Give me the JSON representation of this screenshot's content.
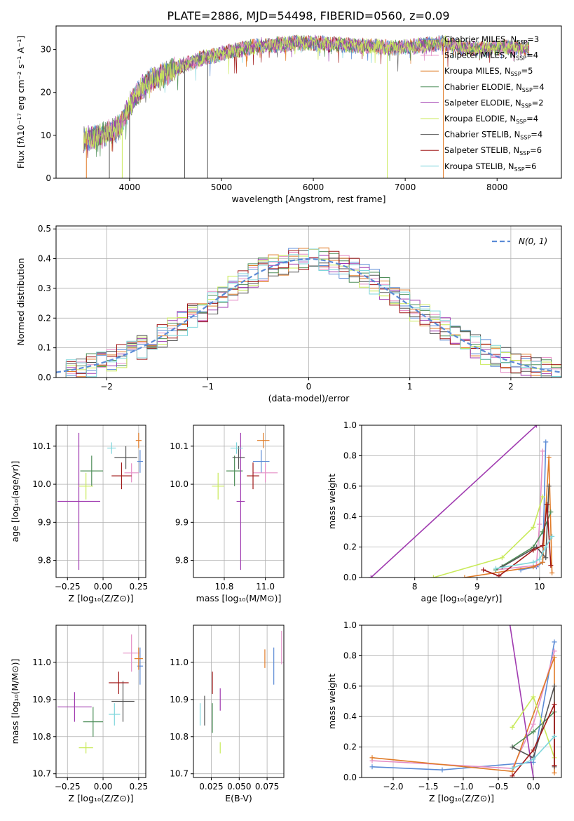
{
  "figure": {
    "title": "PLATE=2886, MJD=54498, FIBERID=0560, z=0.09"
  },
  "colors": {
    "chabrier_miles": "#5b8bd6",
    "salpeter_miles": "#e58fc6",
    "kroupa_miles": "#e07b27",
    "chabrier_elodie": "#4f8f5a",
    "salpeter_elodie": "#a03bb0",
    "kroupa_elodie": "#c9ea5a",
    "chabrier_stelib": "#555555",
    "salpeter_stelib": "#a01818",
    "kroupa_stelib": "#7fd6dc",
    "normal_curve": "#5b8bd6",
    "grid": "#b0b0b0"
  },
  "chart_data": [
    {
      "id": "spectrum",
      "type": "line",
      "xlabel": "wavelength [Angstrom, rest frame]",
      "ylabel": "Flux [fλ10⁻¹⁷ erg cm⁻² s⁻¹ A⁻¹]",
      "xlim": [
        3200,
        8700
      ],
      "ylim": [
        0,
        35.5
      ],
      "xticks": [
        "4000",
        "5000",
        "6000",
        "7000",
        "8000"
      ],
      "yticks": [
        "0",
        "10",
        "20",
        "30"
      ],
      "grid": false,
      "legend_position": "top-right",
      "legend": [
        "Chabrier MILES, N_SSP=3",
        "Salpeter MILES, N_SSP=4",
        "Kroupa MILES, N_SSP=5",
        "Chabrier ELODIE, N_SSP=4",
        "Salpeter ELODIE, N_SSP=2",
        "Kroupa ELODIE, N_SSP=4",
        "Chabrier STELIB, N_SSP=4",
        "Salpeter STELIB, N_SSP=6",
        "Kroupa STELIB, N_SSP=6"
      ],
      "continuum": {
        "x": [
          3500,
          3700,
          3900,
          4000,
          4100,
          4200,
          4400,
          4600,
          4800,
          5000,
          5200,
          5400,
          5600,
          5800,
          6000,
          6200,
          6400,
          6600,
          6800,
          7000,
          7200,
          7400,
          7600,
          7800,
          8000,
          8200,
          8350
        ],
        "y": [
          9,
          10,
          12,
          17,
          20,
          22.5,
          24.5,
          26.5,
          28,
          29,
          30,
          30.8,
          31.2,
          31.5,
          31.5,
          31.2,
          31,
          30.8,
          30.5,
          30.5,
          31,
          31.5,
          30.5,
          30,
          30.5,
          30.5,
          30.2
        ]
      },
      "spikes": [
        {
          "x": 3530,
          "y_min": 0,
          "color": "#e07b27"
        },
        {
          "x": 3780,
          "y_min": 0,
          "color": "#555555"
        },
        {
          "x": 3920,
          "y_min": 0,
          "color": "#c9ea5a"
        },
        {
          "x": 4000,
          "y_min": 0,
          "color": "#555555"
        },
        {
          "x": 4600,
          "y_min": 0,
          "color": "#555555"
        },
        {
          "x": 4850,
          "y_min": 0,
          "color": "#555555"
        },
        {
          "x": 6805,
          "y_min": 0,
          "color": "#c9ea5a"
        },
        {
          "x": 7415,
          "y_min": 0,
          "color": "#e07b27"
        }
      ]
    },
    {
      "id": "residuals",
      "type": "line",
      "xlabel": "(data-model)/error",
      "ylabel": "Normed distribution",
      "xlim": [
        -2.5,
        2.5
      ],
      "ylim": [
        0,
        0.51
      ],
      "xticks": [
        "−2",
        "−1",
        "0",
        "1",
        "2"
      ],
      "yticks": [
        "0.0",
        "0.1",
        "0.2",
        "0.3",
        "0.4",
        "0.5"
      ],
      "grid": true,
      "legend_position": "top-right",
      "legend": [
        "N(0, 1)"
      ],
      "bin_width": 0.1,
      "histogram_series": 9
    },
    {
      "id": "age_vs_Z",
      "type": "scatter",
      "xlabel": "Z [log₁₀(Z/Z⊙)]",
      "ylabel": "age  [log₁₀(age/yr)]",
      "xlim": [
        -0.33,
        0.3
      ],
      "ylim": [
        9.755,
        10.155
      ],
      "xticks": [
        "−0.25",
        "0.00",
        "0.25"
      ],
      "yticks": [
        "9.8",
        "9.9",
        "10.0",
        "10.1"
      ],
      "grid": true,
      "points": [
        {
          "series": "Chabrier MILES",
          "x": 0.26,
          "y": 10.06,
          "xerr": 0.02,
          "yerr": 0.03
        },
        {
          "series": "Salpeter MILES",
          "x": 0.2,
          "y": 10.03,
          "xerr": 0.05,
          "yerr": 0.025
        },
        {
          "series": "Kroupa MILES",
          "x": 0.25,
          "y": 10.115,
          "xerr": 0.02,
          "yerr": 0.02
        },
        {
          "series": "Chabrier ELODIE",
          "x": -0.08,
          "y": 10.035,
          "xerr": 0.08,
          "yerr": 0.04
        },
        {
          "series": "Salpeter ELODIE",
          "x": -0.17,
          "y": 9.955,
          "xerr": 0.15,
          "yerr": 0.18
        },
        {
          "series": "Kroupa ELODIE",
          "x": -0.12,
          "y": 9.995,
          "xerr": 0.05,
          "yerr": 0.035
        },
        {
          "series": "Chabrier STELIB",
          "x": 0.16,
          "y": 10.07,
          "xerr": 0.08,
          "yerr": 0.03
        },
        {
          "series": "Salpeter STELIB",
          "x": 0.13,
          "y": 10.022,
          "xerr": 0.07,
          "yerr": 0.035
        },
        {
          "series": "Kroupa STELIB",
          "x": 0.06,
          "y": 10.095,
          "xerr": 0.03,
          "yerr": 0.015
        }
      ]
    },
    {
      "id": "age_vs_mass",
      "type": "scatter",
      "xlabel": "mass [log₁₀(M/M⊙)]",
      "xlim": [
        10.65,
        11.09
      ],
      "ylim": [
        9.755,
        10.155
      ],
      "xticks": [
        "10.8",
        "11.0"
      ],
      "yticks": [
        "9.8",
        "9.9",
        "10.0",
        "10.1"
      ],
      "grid": true,
      "points": [
        {
          "series": "Chabrier MILES",
          "x": 10.98,
          "y": 10.06,
          "xerr": 0.04,
          "yerr": 0.03
        },
        {
          "series": "Salpeter MILES",
          "x": 11.0,
          "y": 10.03,
          "xerr": 0.06,
          "yerr": 0.025
        },
        {
          "series": "Kroupa MILES",
          "x": 10.99,
          "y": 10.115,
          "xerr": 0.03,
          "yerr": 0.02
        },
        {
          "series": "Chabrier ELODIE",
          "x": 10.85,
          "y": 10.035,
          "xerr": 0.04,
          "yerr": 0.04
        },
        {
          "series": "Salpeter ELODIE",
          "x": 10.88,
          "y": 9.955,
          "xerr": 0.02,
          "yerr": 0.18
        },
        {
          "series": "Kroupa ELODIE",
          "x": 10.77,
          "y": 9.995,
          "xerr": 0.03,
          "yerr": 0.035
        },
        {
          "series": "Chabrier STELIB",
          "x": 10.87,
          "y": 10.07,
          "xerr": 0.03,
          "yerr": 0.03
        },
        {
          "series": "Salpeter STELIB",
          "x": 10.94,
          "y": 10.022,
          "xerr": 0.03,
          "yerr": 0.035
        },
        {
          "series": "Kroupa STELIB",
          "x": 10.86,
          "y": 10.095,
          "xerr": 0.03,
          "yerr": 0.015
        }
      ]
    },
    {
      "id": "weight_vs_age",
      "type": "line",
      "xlabel": "age  [log₁₀(age/yr)]",
      "ylabel": "mass weight",
      "xlim": [
        7.15,
        10.35
      ],
      "ylim": [
        0,
        1.0
      ],
      "xticks": [
        "8",
        "9",
        "10"
      ],
      "yticks": [
        "0.0",
        "0.2",
        "0.4",
        "0.6",
        "0.8",
        "1.0"
      ],
      "grid": true,
      "series": [
        {
          "name": "Chabrier MILES",
          "x": [
            9.7,
            9.95,
            10.05,
            10.1
          ],
          "y": [
            0.05,
            0.07,
            0.1,
            0.89
          ]
        },
        {
          "name": "Salpeter MILES",
          "x": [
            9.3,
            9.95,
            10.0,
            10.05
          ],
          "y": [
            0.05,
            0.08,
            0.35,
            0.83
          ]
        },
        {
          "name": "Kroupa MILES",
          "x": [
            8.8,
            9.9,
            10.05,
            10.15,
            10.2
          ],
          "y": [
            0.0,
            0.07,
            0.1,
            0.79,
            0.03
          ]
        },
        {
          "name": "Chabrier ELODIE",
          "x": [
            9.3,
            9.9,
            10.05,
            10.18
          ],
          "y": [
            0.05,
            0.2,
            0.3,
            0.43
          ]
        },
        {
          "name": "Salpeter ELODIE",
          "x": [
            7.3,
            9.95
          ],
          "y": [
            0.0,
            1.0
          ]
        },
        {
          "name": "Kroupa ELODIE",
          "x": [
            8.3,
            9.4,
            9.9,
            10.05
          ],
          "y": [
            0.0,
            0.13,
            0.33,
            0.53
          ]
        },
        {
          "name": "Chabrier STELIB",
          "x": [
            9.4,
            9.95,
            10.1,
            10.15
          ],
          "y": [
            0.07,
            0.2,
            0.13,
            0.6
          ]
        },
        {
          "name": "Salpeter STELIB",
          "x": [
            9.1,
            9.35,
            9.9,
            10.05,
            10.12,
            10.18
          ],
          "y": [
            0.05,
            0.01,
            0.18,
            0.21,
            0.48,
            0.08
          ]
        },
        {
          "name": "Kroupa STELIB",
          "x": [
            9.3,
            9.9,
            10.0,
            10.1,
            10.2
          ],
          "y": [
            0.06,
            0.1,
            0.12,
            0.2,
            0.27
          ]
        }
      ]
    },
    {
      "id": "mass_vs_Z",
      "type": "scatter",
      "xlabel": "Z [log₁₀(Z/Z⊙)]",
      "ylabel": "mass [log₁₀(M/M⊙)]",
      "xlim": [
        -0.33,
        0.3
      ],
      "ylim": [
        10.69,
        11.1
      ],
      "xticks": [
        "−0.25",
        "0.00",
        "0.25"
      ],
      "yticks": [
        "10.7",
        "10.8",
        "10.9",
        "11.0"
      ],
      "grid": true,
      "points": [
        {
          "series": "Chabrier MILES",
          "x": 0.26,
          "y": 10.99,
          "xerr": 0.02,
          "yerr": 0.05
        },
        {
          "series": "Salpeter MILES",
          "x": 0.2,
          "y": 11.025,
          "xerr": 0.06,
          "yerr": 0.05
        },
        {
          "series": "Kroupa MILES",
          "x": 0.25,
          "y": 11.01,
          "xerr": 0.03,
          "yerr": 0.03
        },
        {
          "series": "Chabrier ELODIE",
          "x": -0.07,
          "y": 10.84,
          "xerr": 0.07,
          "yerr": 0.04
        },
        {
          "series": "Salpeter ELODIE",
          "x": -0.2,
          "y": 10.88,
          "xerr": 0.12,
          "yerr": 0.04
        },
        {
          "series": "Kroupa ELODIE",
          "x": -0.12,
          "y": 10.77,
          "xerr": 0.05,
          "yerr": 0.015
        },
        {
          "series": "Chabrier STELIB",
          "x": 0.14,
          "y": 10.895,
          "xerr": 0.08,
          "yerr": 0.055
        },
        {
          "series": "Salpeter STELIB",
          "x": 0.11,
          "y": 10.945,
          "xerr": 0.07,
          "yerr": 0.03
        },
        {
          "series": "Kroupa STELIB",
          "x": 0.08,
          "y": 10.86,
          "xerr": 0.04,
          "yerr": 0.03
        }
      ]
    },
    {
      "id": "mass_vs_ebv",
      "type": "scatter",
      "xlabel": "E(B-V)",
      "xlim": [
        0.009,
        0.09
      ],
      "ylim": [
        10.69,
        11.1
      ],
      "xticks": [
        "0.025",
        "0.050",
        "0.075"
      ],
      "yticks": [
        "10.7",
        "10.8",
        "10.9",
        "11.0"
      ],
      "grid": true,
      "points": [
        {
          "series": "Chabrier MILES",
          "x": 0.081,
          "y": 10.99,
          "xerr": 0.0,
          "yerr": 0.05
        },
        {
          "series": "Salpeter MILES",
          "x": 0.088,
          "y": 11.04,
          "xerr": 0.0,
          "yerr": 0.045
        },
        {
          "series": "Kroupa MILES",
          "x": 0.073,
          "y": 11.01,
          "xerr": 0.0,
          "yerr": 0.025
        },
        {
          "series": "Chabrier ELODIE",
          "x": 0.026,
          "y": 10.85,
          "xerr": 0.0,
          "yerr": 0.04
        },
        {
          "series": "Salpeter ELODIE",
          "x": 0.033,
          "y": 10.9,
          "xerr": 0.0,
          "yerr": 0.03
        },
        {
          "series": "Kroupa ELODIE",
          "x": 0.033,
          "y": 10.77,
          "xerr": 0.0,
          "yerr": 0.015
        },
        {
          "series": "Chabrier STELIB",
          "x": 0.019,
          "y": 10.87,
          "xerr": 0.0,
          "yerr": 0.04
        },
        {
          "series": "Salpeter STELIB",
          "x": 0.026,
          "y": 10.945,
          "xerr": 0.0,
          "yerr": 0.03
        },
        {
          "series": "Kroupa STELIB",
          "x": 0.015,
          "y": 10.86,
          "xerr": 0.0,
          "yerr": 0.03
        }
      ]
    },
    {
      "id": "weight_vs_Z",
      "type": "line",
      "xlabel": "Z [log₁₀(Z/Z⊙)]",
      "ylabel": "mass weight",
      "xlim": [
        -2.45,
        0.4
      ],
      "ylim": [
        0,
        1.0
      ],
      "xticks": [
        "−2.0",
        "−1.5",
        "−1.0",
        "−0.5",
        "0.0"
      ],
      "yticks": [
        "0.0",
        "0.2",
        "0.4",
        "0.6",
        "0.8",
        "1.0"
      ],
      "grid": true,
      "series": [
        {
          "name": "Chabrier MILES",
          "x": [
            -2.3,
            -1.3,
            0.0,
            0.3
          ],
          "y": [
            0.07,
            0.05,
            0.1,
            0.89
          ]
        },
        {
          "name": "Salpeter MILES",
          "x": [
            -2.3,
            -0.3,
            0.0,
            0.3
          ],
          "y": [
            0.11,
            0.06,
            0.35,
            0.83
          ]
        },
        {
          "name": "Kroupa MILES",
          "x": [
            -2.3,
            -0.3,
            0.3,
            0.3
          ],
          "y": [
            0.13,
            0.04,
            0.79,
            0.03
          ]
        },
        {
          "name": "Chabrier ELODIE",
          "x": [
            -0.3,
            0.0,
            0.3
          ],
          "y": [
            0.2,
            0.3,
            0.43
          ]
        },
        {
          "name": "Salpeter ELODIE",
          "x": [
            -0.4,
            0.0
          ],
          "y": [
            1.2,
            0.0
          ]
        },
        {
          "name": "Kroupa ELODIE",
          "x": [
            -0.3,
            0.0,
            0.3
          ],
          "y": [
            0.33,
            0.53,
            0.13
          ]
        },
        {
          "name": "Chabrier STELIB",
          "x": [
            -0.3,
            0.0,
            0.3,
            0.3
          ],
          "y": [
            0.2,
            0.13,
            0.6,
            0.07
          ]
        },
        {
          "name": "Salpeter STELIB",
          "x": [
            -0.3,
            0.0,
            0.3,
            0.3
          ],
          "y": [
            0.01,
            0.18,
            0.48,
            0.08
          ]
        },
        {
          "name": "Kroupa STELIB",
          "x": [
            -0.3,
            0.0,
            0.3
          ],
          "y": [
            0.06,
            0.12,
            0.27
          ]
        }
      ]
    }
  ]
}
